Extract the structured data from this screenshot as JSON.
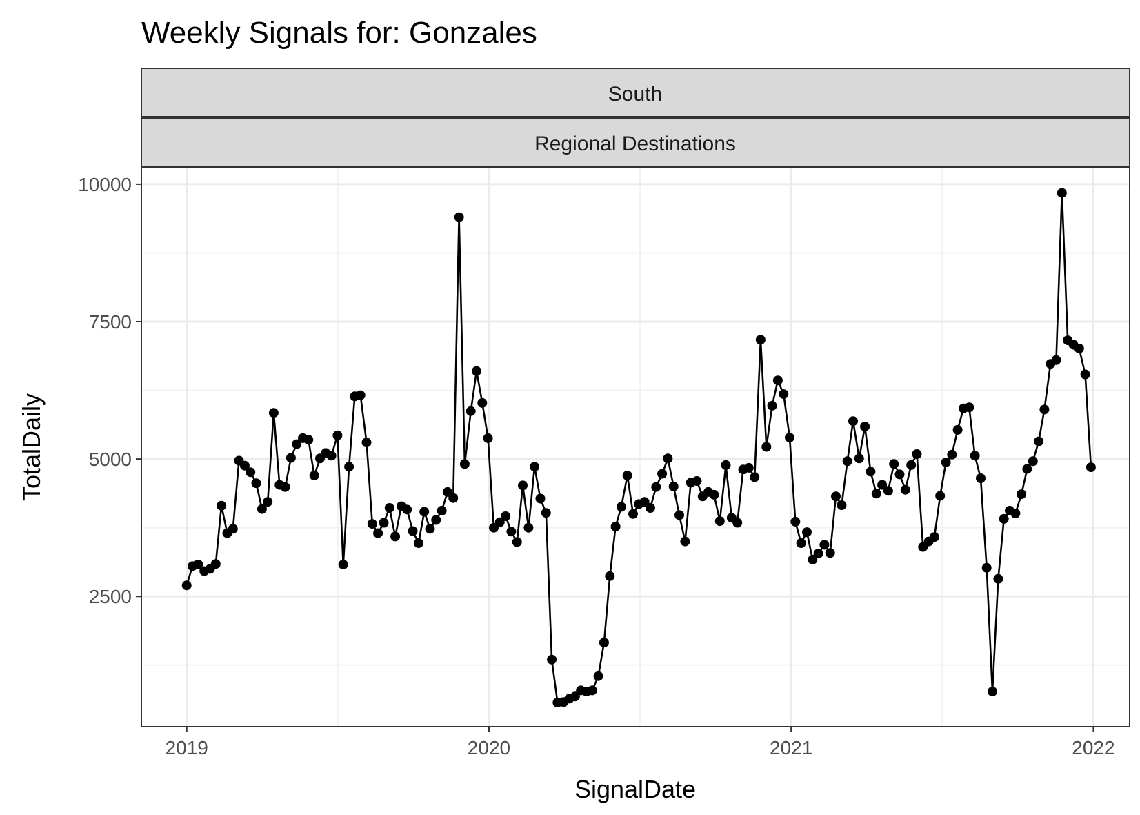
{
  "chart_data": {
    "type": "line",
    "title": "Weekly Signals for: Gonzales",
    "facet_labels": [
      "South",
      "Regional Destinations"
    ],
    "xlabel": "SignalDate",
    "ylabel": "TotalDaily",
    "xlim": [
      2018.85,
      2022.12
    ],
    "ylim": [
      130,
      10300
    ],
    "x_ticks": [
      2019,
      2020,
      2021,
      2022
    ],
    "y_ticks": [
      2500,
      5000,
      7500,
      10000
    ],
    "grid": true,
    "legend": "none",
    "colors": {
      "line": "#000000",
      "points": "#000000",
      "panel_border": "#333333",
      "strip_fill": "#d9d9d9",
      "grid_major": "#ebebeb",
      "grid_minor": "#f2f2f2"
    },
    "series": [
      {
        "x": [
          2019.0,
          2019.019,
          2019.038,
          2019.058,
          2019.077,
          2019.096,
          2019.115,
          2019.134,
          2019.153,
          2019.173,
          2019.192,
          2019.211,
          2019.23,
          2019.249,
          2019.268,
          2019.288,
          2019.307,
          2019.326,
          2019.345,
          2019.364,
          2019.384,
          2019.403,
          2019.422,
          2019.441,
          2019.46,
          2019.479,
          2019.499,
          2019.518,
          2019.537,
          2019.556,
          2019.575,
          2019.595,
          2019.614,
          2019.633,
          2019.652,
          2019.671,
          2019.69,
          2019.71,
          2019.729,
          2019.748,
          2019.767,
          2019.786,
          2019.805,
          2019.825,
          2019.844,
          2019.863,
          2019.882,
          2019.901,
          2019.92,
          2019.94,
          2019.959,
          2019.978,
          2019.997,
          2020.016,
          2020.036,
          2020.055,
          2020.074,
          2020.093,
          2020.112,
          2020.131,
          2020.151,
          2020.17,
          2020.189,
          2020.208,
          2020.227,
          2020.247,
          2020.266,
          2020.285,
          2020.304,
          2020.323,
          2020.342,
          2020.362,
          2020.381,
          2020.4,
          2020.419,
          2020.438,
          2020.458,
          2020.477,
          2020.496,
          2020.515,
          2020.534,
          2020.553,
          2020.573,
          2020.592,
          2020.611,
          2020.63,
          2020.649,
          2020.668,
          2020.688,
          2020.707,
          2020.726,
          2020.745,
          2020.764,
          2020.784,
          2020.803,
          2020.822,
          2020.841,
          2020.86,
          2020.879,
          2020.899,
          2020.918,
          2020.937,
          2020.956,
          2020.975,
          2020.995,
          2021.014,
          2021.033,
          2021.052,
          2021.071,
          2021.09,
          2021.11,
          2021.129,
          2021.148,
          2021.167,
          2021.186,
          2021.205,
          2021.225,
          2021.244,
          2021.263,
          2021.282,
          2021.301,
          2021.321,
          2021.34,
          2021.359,
          2021.378,
          2021.397,
          2021.416,
          2021.436,
          2021.455,
          2021.474,
          2021.493,
          2021.512,
          2021.532,
          2021.551,
          2021.57,
          2021.589,
          2021.608,
          2021.627,
          2021.647,
          2021.666,
          2021.685,
          2021.704,
          2021.723,
          2021.742,
          2021.762,
          2021.781,
          2021.8,
          2021.819,
          2021.838,
          2021.858,
          2021.877,
          2021.896,
          2021.915,
          2021.934,
          2021.953,
          2021.973,
          2021.992
        ],
        "y": [
          2700,
          3050,
          3080,
          2960,
          3000,
          3090,
          4150,
          3650,
          3730,
          4970,
          4880,
          4760,
          4560,
          4090,
          4220,
          5840,
          4530,
          4490,
          5020,
          5270,
          5380,
          5350,
          4700,
          5010,
          5110,
          5060,
          5430,
          3080,
          4860,
          6140,
          6160,
          5300,
          3820,
          3650,
          3840,
          4110,
          3590,
          4140,
          4080,
          3690,
          3470,
          4040,
          3730,
          3890,
          4060,
          4400,
          4290,
          9400,
          4910,
          5870,
          6600,
          6020,
          5380,
          3750,
          3850,
          3960,
          3680,
          3490,
          4520,
          3750,
          4860,
          4280,
          4020,
          1350,
          570,
          580,
          640,
          680,
          790,
          770,
          790,
          1050,
          1660,
          2870,
          3770,
          4130,
          4700,
          4000,
          4180,
          4220,
          4110,
          4490,
          4730,
          5010,
          4500,
          3980,
          3500,
          4570,
          4600,
          4320,
          4400,
          4350,
          3870,
          4890,
          3930,
          3840,
          4810,
          4840,
          4670,
          7170,
          5220,
          5970,
          6430,
          6180,
          5390,
          3860,
          3470,
          3670,
          3170,
          3280,
          3440,
          3290,
          4320,
          4160,
          4960,
          5690,
          5010,
          5590,
          4770,
          4370,
          4530,
          4420,
          4910,
          4720,
          4440,
          4890,
          5090,
          3400,
          3500,
          3580,
          4330,
          4940,
          5080,
          5530,
          5920,
          5940,
          5060,
          4650,
          3020,
          770,
          2820,
          3910,
          4060,
          4010,
          4360,
          4820,
          4960,
          5320,
          5900,
          6730,
          6800,
          9840,
          7160,
          7080,
          7010,
          6540,
          4850
        ]
      }
    ]
  }
}
